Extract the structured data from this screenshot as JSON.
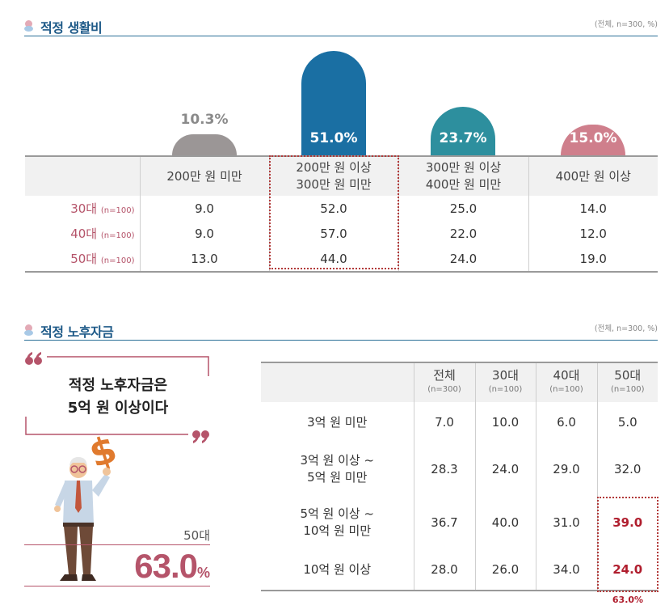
{
  "section1": {
    "title": "적정 생활비",
    "note": "(전체, n=300, %)"
  },
  "section2": {
    "title": "적정 노후자금",
    "note": "(전체, n=300, %)"
  },
  "chart_data": [
    {
      "type": "bar",
      "title": "적정 생활비",
      "categories": [
        "200만 원 미만",
        "200만 원 이상\n300만 원 미만",
        "300만 원 이상\n400만 원 미만",
        "400만 원 이상"
      ],
      "values": [
        10.3,
        51.0,
        23.7,
        15.0
      ],
      "value_labels": [
        "10.3%",
        "51.0%",
        "23.7%",
        "15.0%"
      ],
      "colors": [
        "#9b9696",
        "#1a6fa3",
        "#2d8f9e",
        "#cf7f8c"
      ],
      "highlight_index": 1,
      "table": {
        "rows": [
          {
            "age": "30대",
            "n": "(n=100)",
            "values": [
              "9.0",
              "52.0",
              "25.0",
              "14.0"
            ]
          },
          {
            "age": "40대",
            "n": "(n=100)",
            "values": [
              "9.0",
              "57.0",
              "22.0",
              "12.0"
            ]
          },
          {
            "age": "50대",
            "n": "(n=100)",
            "values": [
              "13.0",
              "44.0",
              "24.0",
              "19.0"
            ]
          }
        ]
      }
    },
    {
      "type": "table",
      "title": "적정 노후자금",
      "columns": [
        {
          "label": "전체",
          "sub": "(n=300)"
        },
        {
          "label": "30대",
          "sub": "(n=100)"
        },
        {
          "label": "40대",
          "sub": "(n=100)"
        },
        {
          "label": "50대",
          "sub": "(n=100)"
        }
      ],
      "rows": [
        {
          "label": "3억 원 미만",
          "values": [
            "7.0",
            "10.0",
            "6.0",
            "5.0"
          ]
        },
        {
          "label": "3억 원 이상 ~\n5억 원 미만",
          "values": [
            "28.3",
            "24.0",
            "29.0",
            "32.0"
          ]
        },
        {
          "label": "5억 원 이상 ~\n10억 원 미만",
          "values": [
            "36.7",
            "40.0",
            "31.0",
            "39.0"
          ]
        },
        {
          "label": "10억 원 이상",
          "values": [
            "28.0",
            "26.0",
            "34.0",
            "24.0"
          ]
        }
      ],
      "highlight_note": "63.0%"
    }
  ],
  "callout": {
    "quote_line1": "적정 노후자금은",
    "quote_line2": "5억 원 이상이다",
    "age": "50대",
    "value": "63.0",
    "unit": "%"
  }
}
